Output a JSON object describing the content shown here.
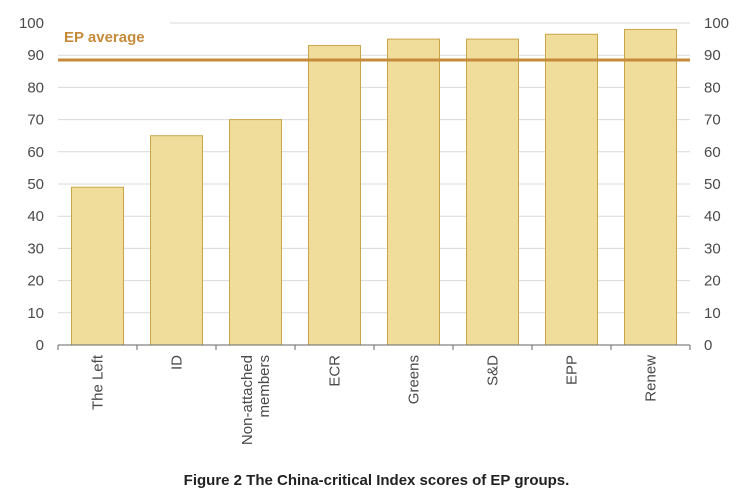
{
  "chart_data": {
    "type": "bar",
    "categories": [
      "The Left",
      "ID",
      "Non-attached members",
      "ECR",
      "Greens",
      "S&D",
      "EPP",
      "Renew"
    ],
    "category_lines": [
      [
        "The Left"
      ],
      [
        "ID"
      ],
      [
        "Non-attached",
        "members"
      ],
      [
        "ECR"
      ],
      [
        "Greens"
      ],
      [
        "S&D"
      ],
      [
        "EPP"
      ],
      [
        "Renew"
      ]
    ],
    "values": [
      49,
      65,
      70,
      93,
      95,
      95,
      96.5,
      98
    ],
    "ylim": [
      0,
      100
    ],
    "yticks": [
      0,
      10,
      20,
      30,
      40,
      50,
      60,
      70,
      80,
      90,
      100
    ],
    "secondary_y_axis": true,
    "grid": true,
    "reference_line": {
      "label": "EP average",
      "value": 88.5
    },
    "caption": "Figure 2 The China-critical Index scores of EP groups."
  },
  "colors": {
    "bar_fill": "#f0dd9c",
    "bar_stroke": "#c9a54a",
    "average_line": "#c58a3a",
    "grid": "#d9d9d9",
    "axis": "#666666"
  }
}
